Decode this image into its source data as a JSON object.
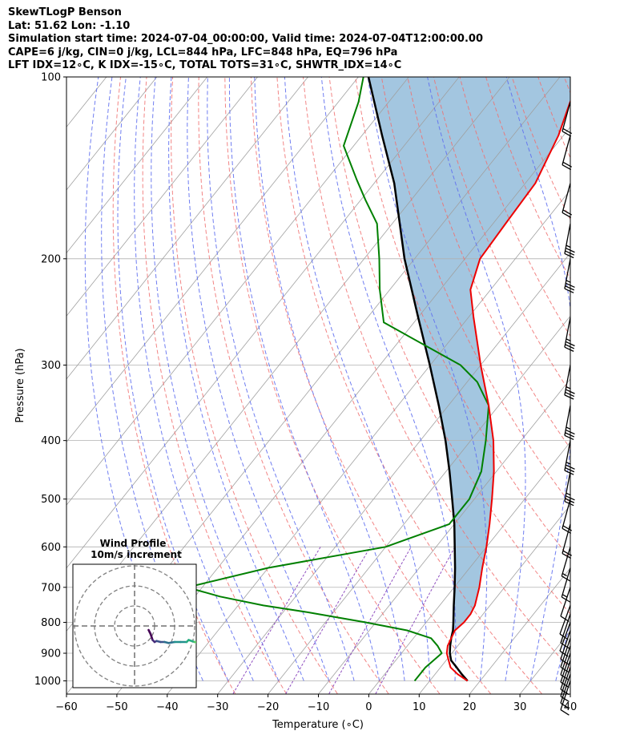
{
  "header": {
    "line1": "SkewTLogP Benson",
    "line2": "Lat: 51.62   Lon: -1.10",
    "line3": "Simulation start time: 2024-07-04_00:00:00, Valid time: 2024-07-04T12:00:00.00",
    "line4": "CAPE=6 j/kg, CIN=0 j/kg, LCL=844 hPa, LFC=848 hPa, EQ=796 hPa",
    "line5": "LFT IDX=12∘C, K IDX=-15∘C, TOTAL TOTS=31∘C, SHWTR_IDX=14∘C"
  },
  "colors": {
    "temperature": "#ee0000",
    "dewpoint": "#008000",
    "parcel": "#000000",
    "cape_fill": "#a3c6e0",
    "dry_adiabats": "#f07070",
    "moist_adiabats": "#6070f0",
    "mixing_ratio": "#9050c0",
    "isotherms": "#a0a0a0"
  },
  "chart_data": {
    "type": "skewt",
    "xlabel": "Temperature (∘C)",
    "ylabel": "Pressure (hPa)",
    "x_ticks": [
      -60,
      -50,
      -40,
      -30,
      -20,
      -10,
      0,
      10,
      20,
      30,
      40
    ],
    "y_ticks": [
      100,
      200,
      300,
      400,
      500,
      600,
      700,
      800,
      900,
      1000
    ],
    "xlim": [
      -60,
      40
    ],
    "ylim": [
      1050,
      100
    ],
    "grid": true,
    "temperature_profile": [
      [
        1000,
        17.5
      ],
      [
        975,
        14.5
      ],
      [
        950,
        12.0
      ],
      [
        925,
        10.5
      ],
      [
        900,
        9.0
      ],
      [
        875,
        8.0
      ],
      [
        850,
        7.5
      ],
      [
        825,
        7.0
      ],
      [
        800,
        7.5
      ],
      [
        775,
        7.5
      ],
      [
        750,
        7.0
      ],
      [
        700,
        5.0
      ],
      [
        650,
        2.5
      ],
      [
        600,
        0.0
      ],
      [
        550,
        -3.0
      ],
      [
        500,
        -6.5
      ],
      [
        450,
        -10.5
      ],
      [
        400,
        -15.5
      ],
      [
        350,
        -22.0
      ],
      [
        300,
        -30.0
      ],
      [
        250,
        -39.0
      ],
      [
        225,
        -44.0
      ],
      [
        200,
        -47.0
      ],
      [
        175,
        -47.5
      ],
      [
        150,
        -48.0
      ],
      [
        125,
        -51.0
      ],
      [
        110,
        -54.0
      ],
      [
        100,
        -56.0
      ]
    ],
    "dewpoint_profile": [
      [
        1000,
        7.0
      ],
      [
        950,
        7.0
      ],
      [
        925,
        7.5
      ],
      [
        900,
        8.0
      ],
      [
        875,
        6.0
      ],
      [
        850,
        3.5
      ],
      [
        825,
        -2.5
      ],
      [
        800,
        -12.0
      ],
      [
        770,
        -25.0
      ],
      [
        750,
        -35.0
      ],
      [
        725,
        -45.0
      ],
      [
        700,
        -53.0
      ],
      [
        650,
        -40.0
      ],
      [
        600,
        -20.0
      ],
      [
        550,
        -11.0
      ],
      [
        500,
        -11.0
      ],
      [
        450,
        -13.0
      ],
      [
        400,
        -17.0
      ],
      [
        350,
        -22.0
      ],
      [
        320,
        -28.0
      ],
      [
        300,
        -34.0
      ],
      [
        255,
        -56.0
      ],
      [
        225,
        -62.0
      ],
      [
        200,
        -67.0
      ],
      [
        175,
        -73.0
      ],
      [
        160,
        -79.0
      ],
      [
        148,
        -84.0
      ],
      [
        130,
        -92.0
      ],
      [
        110,
        -96.0
      ],
      [
        100,
        -99.0
      ]
    ],
    "parcel_profile": [
      [
        1000,
        17.5
      ],
      [
        975,
        15.3
      ],
      [
        950,
        13.2
      ],
      [
        925,
        11.0
      ],
      [
        900,
        9.6
      ],
      [
        875,
        8.5
      ],
      [
        850,
        7.5
      ],
      [
        825,
        6.6
      ],
      [
        800,
        5.4
      ],
      [
        750,
        2.8
      ],
      [
        700,
        0.1
      ],
      [
        650,
        -2.9
      ],
      [
        600,
        -6.3
      ],
      [
        550,
        -10.0
      ],
      [
        500,
        -14.4
      ],
      [
        450,
        -19.3
      ],
      [
        400,
        -25.0
      ],
      [
        350,
        -31.9
      ],
      [
        300,
        -40.1
      ],
      [
        250,
        -50.0
      ],
      [
        200,
        -62.0
      ],
      [
        150,
        -76.0
      ],
      [
        125,
        -86.0
      ],
      [
        100,
        -98.0
      ]
    ],
    "wind_barbs": [
      {
        "p": 1000,
        "u": -3,
        "v": -9
      },
      {
        "p": 975,
        "u": -3,
        "v": -9
      },
      {
        "p": 950,
        "u": -3,
        "v": -9
      },
      {
        "p": 925,
        "u": -3,
        "v": -9
      },
      {
        "p": 900,
        "u": -3,
        "v": -9
      },
      {
        "p": 875,
        "u": -3,
        "v": -9
      },
      {
        "p": 850,
        "u": -3,
        "v": -9
      },
      {
        "p": 825,
        "u": -3,
        "v": -9
      },
      {
        "p": 800,
        "u": -4,
        "v": -11
      },
      {
        "p": 775,
        "u": -3,
        "v": -9
      },
      {
        "p": 750,
        "u": -4,
        "v": -11
      },
      {
        "p": 700,
        "u": -3,
        "v": -9
      },
      {
        "p": 650,
        "u": -5,
        "v": -17
      },
      {
        "p": 600,
        "u": -5,
        "v": -17
      },
      {
        "p": 550,
        "u": -6,
        "v": -22
      },
      {
        "p": 500,
        "u": -6,
        "v": -22
      },
      {
        "p": 450,
        "u": -7,
        "v": -37
      },
      {
        "p": 400,
        "u": -7,
        "v": -37
      },
      {
        "p": 350,
        "u": -7,
        "v": -37
      },
      {
        "p": 300,
        "u": -7,
        "v": -37
      },
      {
        "p": 250,
        "u": -7,
        "v": -37
      },
      {
        "p": 200,
        "u": -7,
        "v": -37
      },
      {
        "p": 175,
        "u": -7,
        "v": -37
      },
      {
        "p": 150,
        "u": -6,
        "v": -22
      },
      {
        "p": 125,
        "u": -6,
        "v": -22
      },
      {
        "p": 110,
        "u": -6,
        "v": -22
      }
    ],
    "hodograph": {
      "title": "Wind Profile",
      "subtitle": "10m/s increment",
      "rings": [
        10,
        20,
        30
      ],
      "points": [
        [
          7,
          -2
        ],
        [
          7.5,
          -3
        ],
        [
          8,
          -4
        ],
        [
          9,
          -7
        ],
        [
          10,
          -8
        ],
        [
          11,
          -7.5
        ],
        [
          13,
          -8
        ],
        [
          15,
          -8
        ],
        [
          17,
          -8.5
        ],
        [
          20,
          -8
        ],
        [
          23,
          -8
        ],
        [
          26,
          -8
        ],
        [
          27,
          -7
        ],
        [
          30,
          -8
        ],
        [
          33,
          -8.5
        ],
        [
          35,
          -9
        ],
        [
          37,
          -10
        ],
        [
          39,
          -11
        ],
        [
          41,
          -12
        ],
        [
          43,
          -13
        ]
      ]
    }
  }
}
